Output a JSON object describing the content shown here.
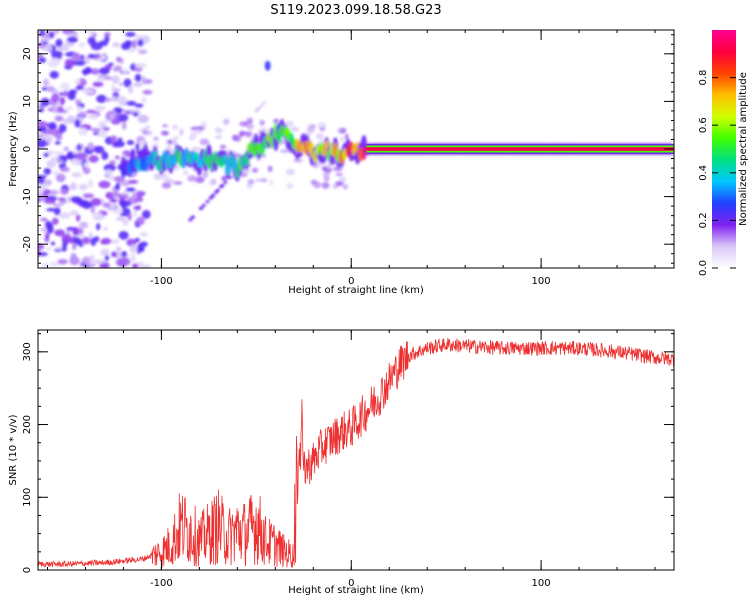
{
  "title": "S119.2023.099.18.58.G23",
  "chart_data": [
    {
      "type": "heatmap",
      "xlabel": "Height of straight line (km)",
      "ylabel": "Frequency (Hz)",
      "xlim": [
        -165,
        170
      ],
      "ylim": [
        -25,
        25
      ],
      "x_ticks": [
        -100,
        0,
        100
      ],
      "y_ticks": [
        -20,
        -10,
        0,
        10,
        20
      ],
      "colorbar": {
        "label": "Normalized spectral amplitude",
        "range": [
          0,
          1
        ],
        "ticks": [
          0.0,
          0.2,
          0.4,
          0.6,
          0.8
        ],
        "colormap": [
          "#ffffff",
          "#d8c8f8",
          "#8020f0",
          "#2040ff",
          "#00c8ff",
          "#00e080",
          "#40ff00",
          "#d0ff00",
          "#ffc000",
          "#ff4000",
          "#ff0040",
          "#ff0090"
        ]
      },
      "ridge": [
        {
          "x": -120,
          "y": -4.0,
          "v": 0.25
        },
        {
          "x": -110,
          "y": -2.5,
          "v": 0.35
        },
        {
          "x": -100,
          "y": -2.5,
          "v": 0.4
        },
        {
          "x": -90,
          "y": -2.0,
          "v": 0.45
        },
        {
          "x": -80,
          "y": -2.5,
          "v": 0.4
        },
        {
          "x": -70,
          "y": -2.0,
          "v": 0.45
        },
        {
          "x": -60,
          "y": -4.0,
          "v": 0.45
        },
        {
          "x": -52,
          "y": 0.0,
          "v": 0.5
        },
        {
          "x": -45,
          "y": 1.0,
          "v": 0.5
        },
        {
          "x": -38,
          "y": 3.5,
          "v": 0.55
        },
        {
          "x": -30,
          "y": 1.5,
          "v": 0.6
        },
        {
          "x": -22,
          "y": -0.5,
          "v": 0.65
        },
        {
          "x": -10,
          "y": -0.8,
          "v": 0.7
        },
        {
          "x": 0,
          "y": -0.8,
          "v": 0.75
        },
        {
          "x": 10,
          "y": 0.0,
          "v": 0.9
        },
        {
          "x": 50,
          "y": 0.0,
          "v": 0.9
        },
        {
          "x": 100,
          "y": 0.0,
          "v": 0.9
        },
        {
          "x": 140,
          "y": 0.0,
          "v": 0.85
        },
        {
          "x": 170,
          "y": 0.0,
          "v": 0.85
        }
      ]
    },
    {
      "type": "line",
      "xlabel": "Height of straight line (km)",
      "ylabel": "SNR (10 * v/v)",
      "xlim": [
        -165,
        170
      ],
      "ylim": [
        0,
        330
      ],
      "x_ticks": [
        -100,
        0,
        100
      ],
      "y_ticks": [
        0,
        100,
        200,
        300
      ],
      "line_color": "#ee3030",
      "series": [
        {
          "x": [
            -165,
            -150,
            -130,
            -110,
            -100,
            -95,
            -90,
            -85,
            -80,
            -75,
            -70,
            -65,
            -60,
            -55,
            -50,
            -45,
            -40,
            -35,
            -30,
            -28,
            -26,
            -24,
            -20,
            -15,
            -10,
            -5,
            0,
            5,
            10,
            15,
            20,
            25,
            30,
            40,
            50,
            60,
            80,
            100,
            120,
            140,
            160,
            170
          ],
          "y": [
            8,
            8,
            10,
            15,
            25,
            35,
            60,
            55,
            40,
            50,
            60,
            45,
            55,
            50,
            65,
            40,
            35,
            25,
            20,
            160,
            150,
            140,
            150,
            170,
            180,
            190,
            195,
            210,
            225,
            240,
            260,
            280,
            295,
            305,
            310,
            308,
            305,
            305,
            305,
            300,
            292,
            290
          ]
        }
      ]
    }
  ]
}
